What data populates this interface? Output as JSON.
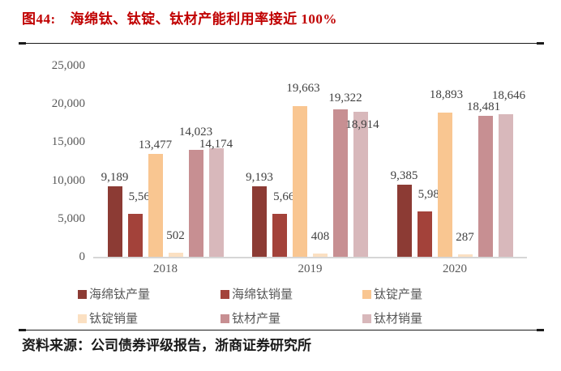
{
  "title": {
    "prefix": "图44:",
    "text": "海绵钛、钛锭、钛材产能利用率接近 100%"
  },
  "source": "资料来源：公司债券评级报告，浙商证券研究所",
  "colors": {
    "title_red": "#C00000",
    "axis_text": "#595959",
    "data_label": "#404040",
    "baseline": "#d6d6d6"
  },
  "chart_data": {
    "type": "bar",
    "title": "海绵钛、钛锭、钛材产能利用率接近 100%",
    "categories": [
      "2018",
      "2019",
      "2020"
    ],
    "series": [
      {
        "name": "海绵钛产量",
        "color": "#8C3B34",
        "values": [
          9189,
          9193,
          9385
        ]
      },
      {
        "name": "海绵钛销量",
        "color": "#A3423A",
        "values": [
          5564,
          5665,
          5984
        ]
      },
      {
        "name": "钛锭产量",
        "color": "#F9C691",
        "values": [
          13477,
          19663,
          18893
        ]
      },
      {
        "name": "钛锭销量",
        "color": "#FBE0C2",
        "values": [
          502,
          408,
          287
        ]
      },
      {
        "name": "钛材产量",
        "color": "#C78F92",
        "values": [
          14023,
          19322,
          18481
        ]
      },
      {
        "name": "钛材销量",
        "color": "#D8B8BB",
        "values": [
          14174,
          18914,
          18646
        ]
      }
    ],
    "data_labels": [
      "9,189",
      "5,564",
      "13,477",
      "502",
      "14,023",
      "14,174",
      "9,193",
      "5,665",
      "19,663",
      "408",
      "19,322",
      "18,914",
      "9,385",
      "5,984",
      "18,893",
      "287",
      "18,481",
      "18,646"
    ],
    "xlabel": "",
    "ylabel": "",
    "ylim": [
      0,
      25000
    ],
    "y_ticks": [
      0,
      5000,
      10000,
      15000,
      20000,
      25000
    ],
    "grid": false,
    "legend_position": "bottom"
  }
}
